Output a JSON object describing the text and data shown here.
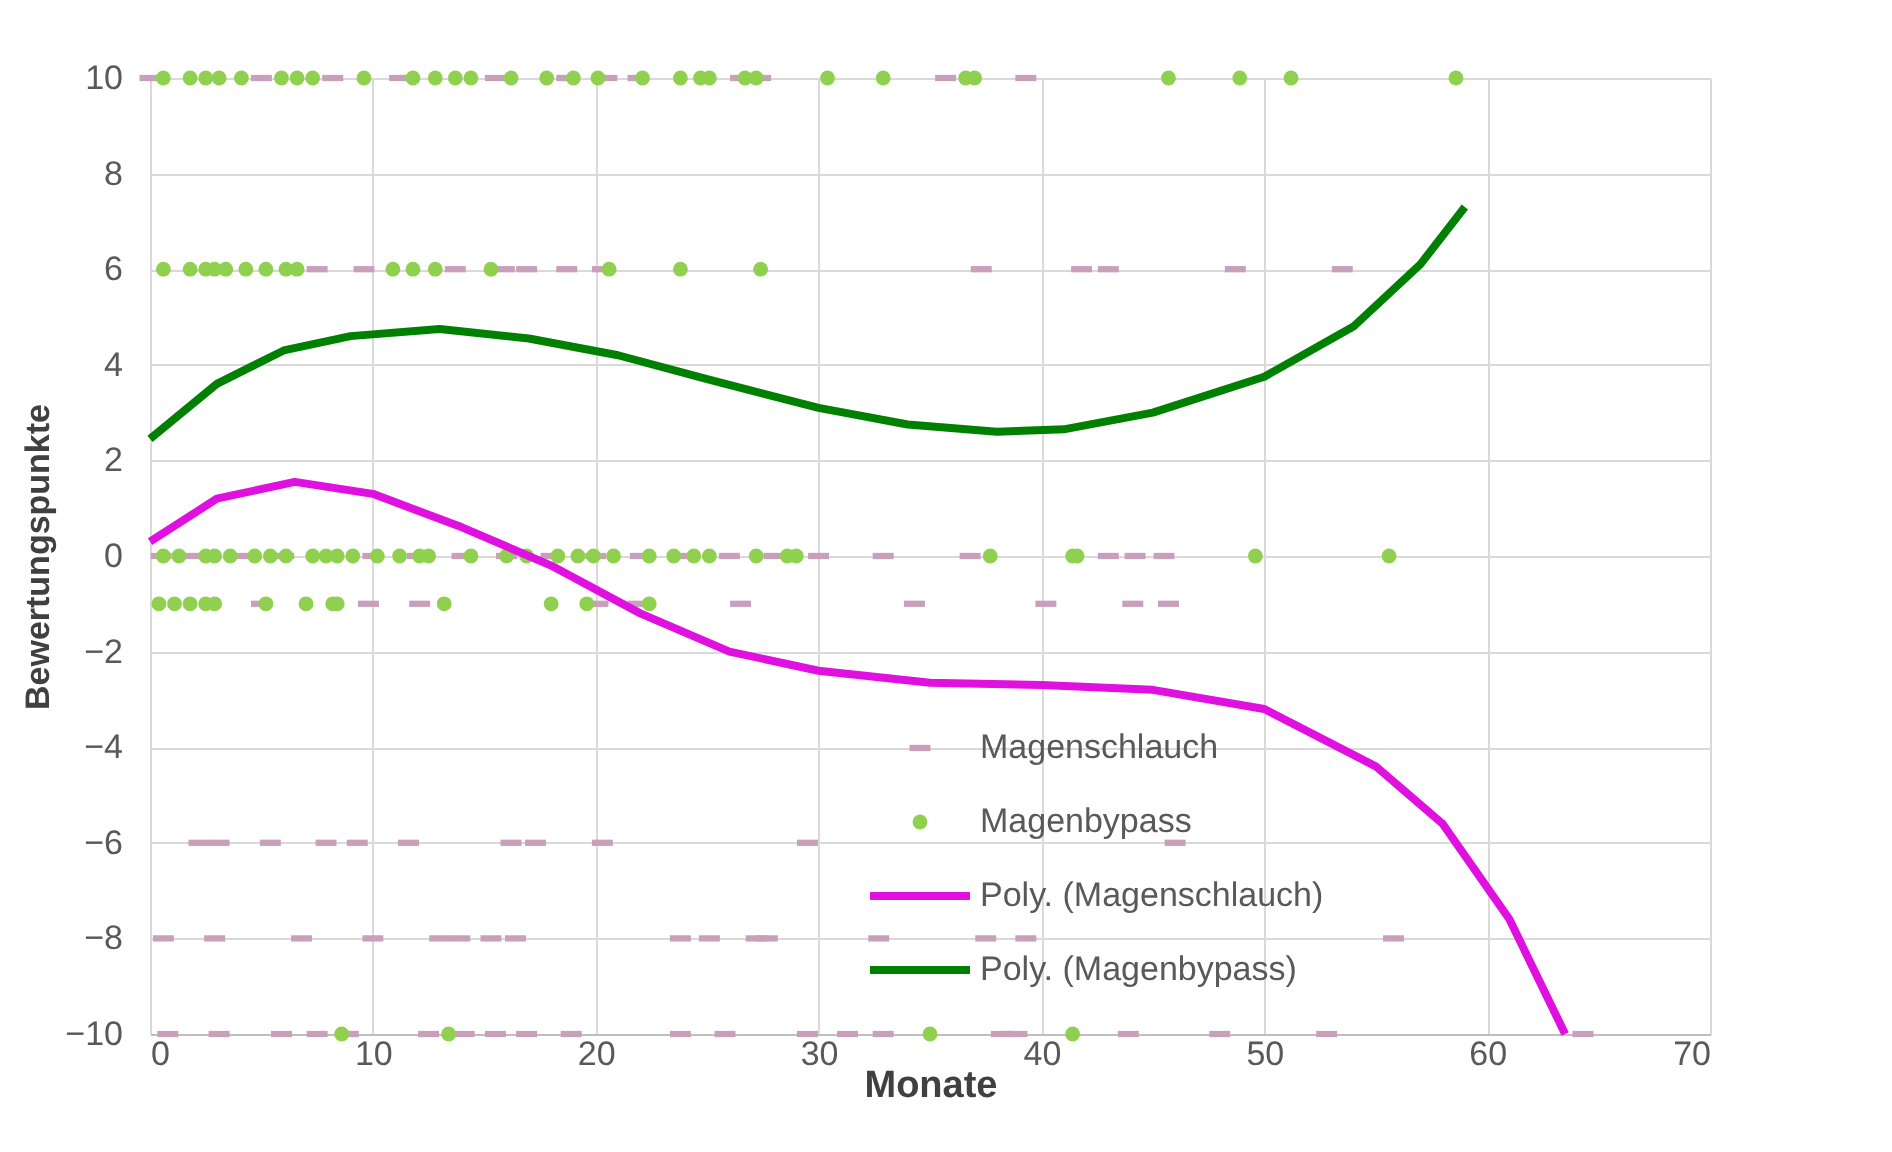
{
  "chart_data": {
    "type": "scatter",
    "xlabel": "Monate",
    "ylabel": "Bewertungspunkte",
    "xlim": [
      0,
      70
    ],
    "xticks": [
      0,
      10,
      20,
      30,
      40,
      50,
      60,
      70
    ],
    "ylim": [
      -10,
      10
    ],
    "yticks": [
      -10,
      -8,
      -6,
      -4,
      -2,
      0,
      2,
      4,
      6,
      8,
      10
    ],
    "grid": true,
    "legend": "bottom",
    "series": [
      {
        "name": "Magenschlauch",
        "type": "scatter",
        "color": "#c9a0bc",
        "x": [
          0,
          5,
          8.2,
          11.2,
          15.5,
          18.7,
          20.5,
          21.9,
          26.5,
          27.4,
          35.7,
          39.3,
          7.5,
          9.6,
          13.7,
          15.9,
          16.9,
          18.7,
          20.3,
          37.3,
          41.8,
          43.0,
          48.7,
          53.5,
          0.5,
          2,
          4,
          6,
          10,
          12,
          14,
          16,
          18,
          20,
          22,
          24,
          26,
          28,
          30,
          32.9,
          36.8,
          43.0,
          44.2,
          45.5,
          5.0,
          9.8,
          12.1,
          20.1,
          21.9,
          26.5,
          34.3,
          40.2,
          44.1,
          45.7,
          2.2,
          3.1,
          5.4,
          7.9,
          9.3,
          11.6,
          16.2,
          17.3,
          20.3,
          29.5,
          46.0,
          0.6,
          2.9,
          6.8,
          10.0,
          13.0,
          13.9,
          15.3,
          16.4,
          23.8,
          25.1,
          27.2,
          27.7,
          32.7,
          37.5,
          39.3,
          55.8,
          0.8,
          3.1,
          5.9,
          7.5,
          8.9,
          12.5,
          14.1,
          15.5,
          16.9,
          18.9,
          23.8,
          25.8,
          29.5,
          31.3,
          32.9,
          38.2,
          38.9,
          43.9,
          48.0,
          52.8,
          64.3
        ],
        "values": [
          10,
          10,
          10,
          10,
          10,
          10,
          10,
          10,
          10,
          10,
          10,
          10,
          6,
          6,
          6,
          6,
          6,
          6,
          6,
          6,
          6,
          6,
          6,
          6,
          0,
          0,
          0,
          0,
          0,
          0,
          0,
          0,
          0,
          0,
          0,
          0,
          0,
          0,
          0,
          0,
          0,
          0,
          0,
          0,
          -1,
          -1,
          -1,
          -1,
          -1,
          -1,
          -1,
          -1,
          -1,
          -1,
          -6,
          -6,
          -6,
          -6,
          -6,
          -6,
          -6,
          -6,
          -6,
          -6,
          -6,
          -8,
          -8,
          -8,
          -8,
          -8,
          -8,
          -8,
          -8,
          -8,
          -8,
          -8,
          -8,
          -8,
          -8,
          -8,
          -8,
          -10,
          -10,
          -10,
          -10,
          -10,
          -10,
          -10,
          -10,
          -10,
          -10,
          -10,
          -10,
          -10,
          -10,
          -10,
          -10,
          -10,
          -10,
          -10,
          -10,
          -10
        ]
      },
      {
        "name": "Magenbypass",
        "type": "scatter",
        "color": "#8fd14f",
        "marker": "circle",
        "x": [
          0.6,
          1.8,
          2.5,
          3.1,
          4.1,
          5.9,
          6.6,
          7.3,
          9.6,
          11.8,
          12.8,
          13.7,
          14.4,
          16.2,
          17.8,
          19.0,
          20.1,
          22.1,
          23.8,
          24.7,
          25.1,
          26.7,
          27.2,
          30.4,
          32.9,
          36.6,
          37.0,
          45.7,
          48.9,
          51.2,
          58.6,
          0.6,
          1.8,
          2.5,
          2.9,
          3.4,
          4.3,
          5.2,
          6.1,
          6.6,
          10.9,
          11.8,
          12.8,
          15.3,
          20.6,
          23.8,
          27.4,
          0.6,
          1.3,
          2.5,
          2.9,
          3.6,
          4.7,
          5.4,
          6.1,
          7.3,
          7.9,
          8.4,
          9.1,
          10.2,
          11.2,
          12.1,
          12.5,
          14.4,
          16.0,
          16.9,
          18.3,
          19.2,
          19.9,
          20.8,
          22.4,
          23.5,
          24.4,
          25.1,
          27.2,
          28.6,
          29.0,
          37.7,
          41.4,
          41.6,
          49.6,
          55.6,
          0.4,
          1.1,
          1.8,
          2.5,
          2.9,
          5.2,
          7.0,
          8.2,
          8.4,
          13.2,
          18.0,
          19.6,
          22.4,
          8.6,
          13.4,
          35.0,
          41.4
        ],
        "values": [
          10,
          10,
          10,
          10,
          10,
          10,
          10,
          10,
          10,
          10,
          10,
          10,
          10,
          10,
          10,
          10,
          10,
          10,
          10,
          10,
          10,
          10,
          10,
          10,
          10,
          10,
          10,
          10,
          10,
          10,
          10,
          6,
          6,
          6,
          6,
          6,
          6,
          6,
          6,
          6,
          6,
          6,
          6,
          6,
          6,
          6,
          6,
          0,
          0,
          0,
          0,
          0,
          0,
          0,
          0,
          0,
          0,
          0,
          0,
          0,
          0,
          0,
          0,
          0,
          0,
          0,
          0,
          0,
          0,
          0,
          0,
          0,
          0,
          0,
          0,
          0,
          0,
          0,
          0,
          0,
          0,
          0,
          -1,
          -1,
          -1,
          -1,
          -1,
          -1,
          -1,
          -1,
          -1,
          -1,
          -1,
          -1,
          -1,
          -10,
          -10,
          -10,
          -10
        ]
      },
      {
        "name": "Poly. (Magenschlauch)",
        "type": "line",
        "color": "#e010e0",
        "x": [
          0,
          3,
          6.5,
          10,
          14,
          18,
          22,
          26,
          30,
          35,
          40,
          45,
          50,
          55,
          58,
          61,
          63.5
        ],
        "values": [
          0.3,
          1.2,
          1.55,
          1.3,
          0.6,
          -0.2,
          -1.2,
          -2.0,
          -2.4,
          -2.65,
          -2.7,
          -2.8,
          -3.2,
          -4.4,
          -5.6,
          -7.6,
          -10
        ]
      },
      {
        "name": "Poly. (Magenbypass)",
        "type": "line",
        "color": "#008000",
        "x": [
          0,
          3,
          6,
          9,
          13,
          17,
          21,
          25,
          30,
          34,
          38,
          41,
          45,
          50,
          54,
          57,
          59
        ],
        "values": [
          2.45,
          3.6,
          4.3,
          4.6,
          4.75,
          4.55,
          4.2,
          3.7,
          3.1,
          2.75,
          2.6,
          2.65,
          3.0,
          3.75,
          4.8,
          6.1,
          7.3
        ]
      }
    ]
  }
}
